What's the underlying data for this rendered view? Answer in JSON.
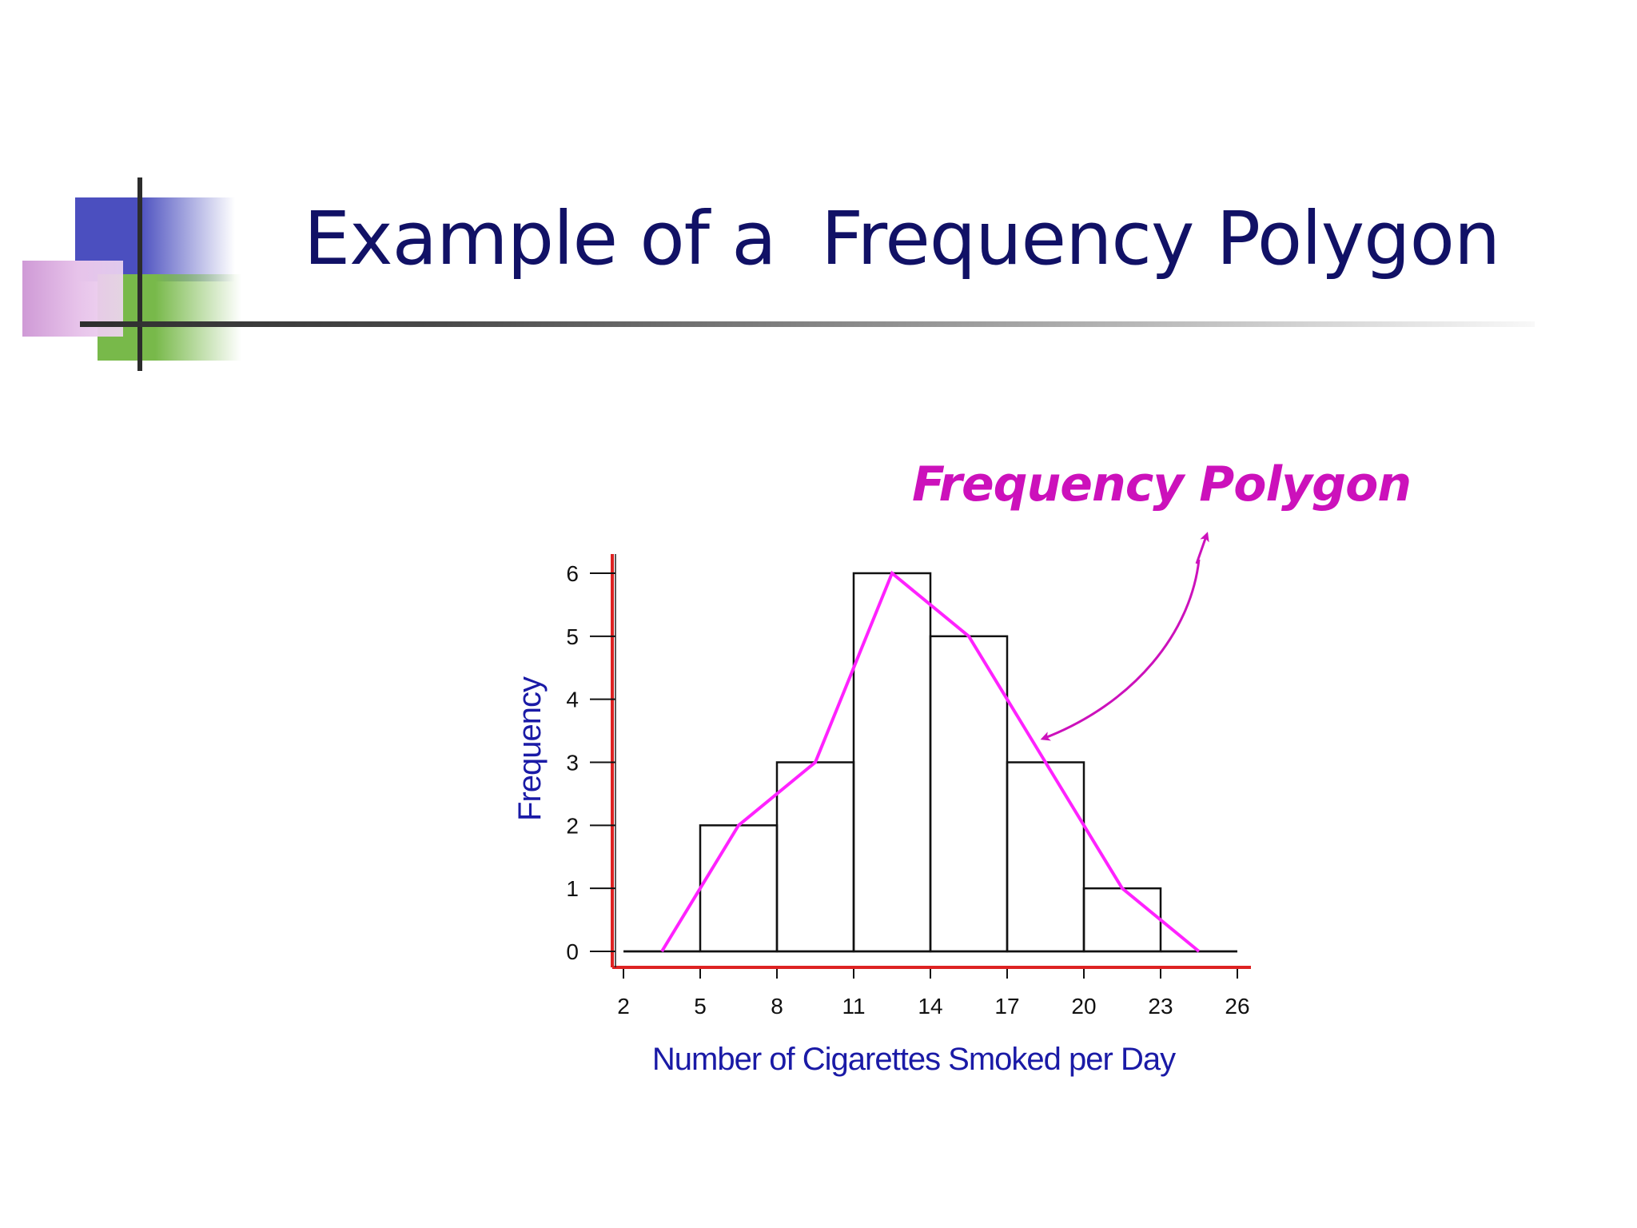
{
  "slide": {
    "title": "Example of a  Frequency Polygon"
  },
  "colors": {
    "title": "#111166",
    "axis_title": "#1a1aa6",
    "polygon": "#ff22ff",
    "callout": "#cc11bb",
    "axis_line": "#dd2222",
    "bars": "#111111"
  },
  "chart_data": {
    "type": "bar",
    "title": "",
    "xlabel": "Number of Cigarettes Smoked per Day",
    "ylabel": "Frequency",
    "x_ticks": [
      "2",
      "5",
      "8",
      "11",
      "14",
      "17",
      "20",
      "23",
      "26"
    ],
    "y_ticks": [
      "0",
      "1",
      "2",
      "3",
      "4",
      "5",
      "6"
    ],
    "xlim": [
      2,
      26
    ],
    "ylim": [
      0,
      6
    ],
    "bins": [
      {
        "start": 2,
        "end": 5,
        "frequency": 0
      },
      {
        "start": 5,
        "end": 8,
        "frequency": 2
      },
      {
        "start": 8,
        "end": 11,
        "frequency": 3
      },
      {
        "start": 11,
        "end": 14,
        "frequency": 6
      },
      {
        "start": 14,
        "end": 17,
        "frequency": 5
      },
      {
        "start": 17,
        "end": 20,
        "frequency": 3
      },
      {
        "start": 20,
        "end": 23,
        "frequency": 1
      },
      {
        "start": 23,
        "end": 26,
        "frequency": 0
      }
    ],
    "polygon": {
      "x": [
        3.5,
        6.5,
        9.5,
        12.5,
        15.5,
        18.5,
        21.5,
        24.5
      ],
      "y": [
        0,
        2,
        3,
        6,
        5,
        3,
        1,
        0
      ]
    },
    "annotation": {
      "text": "Frequency Polygon",
      "points_to": {
        "x": 18.2,
        "y": 3.5
      }
    },
    "grid": false
  }
}
